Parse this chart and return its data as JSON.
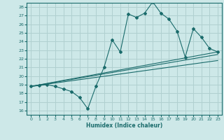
{
  "title": "",
  "xlabel": "Humidex (Indice chaleur)",
  "ylabel": "",
  "bg_color": "#cde8e8",
  "grid_color": "#b0d0d0",
  "line_color": "#1a6b6b",
  "xlim": [
    -0.5,
    23.5
  ],
  "ylim": [
    15.5,
    28.5
  ],
  "xticks": [
    0,
    1,
    2,
    3,
    4,
    5,
    6,
    7,
    8,
    9,
    10,
    11,
    12,
    13,
    14,
    15,
    16,
    17,
    18,
    19,
    20,
    21,
    22,
    23
  ],
  "yticks": [
    16,
    17,
    18,
    19,
    20,
    21,
    22,
    23,
    24,
    25,
    26,
    27,
    28
  ],
  "line1_x": [
    0,
    1,
    2,
    3,
    4,
    5,
    6,
    7,
    8,
    9,
    10,
    11,
    12,
    13,
    14,
    15,
    16,
    17,
    18,
    19,
    20,
    21,
    22,
    23
  ],
  "line1_y": [
    18.8,
    18.9,
    19.0,
    18.8,
    18.5,
    18.2,
    17.5,
    16.2,
    18.8,
    21.0,
    24.2,
    22.8,
    27.2,
    26.8,
    27.3,
    28.6,
    27.3,
    26.6,
    25.2,
    22.2,
    25.5,
    24.5,
    23.2,
    22.8
  ],
  "line2_x": [
    0,
    23
  ],
  "line2_y": [
    18.8,
    22.5
  ],
  "line3_x": [
    0,
    23
  ],
  "line3_y": [
    18.8,
    21.8
  ],
  "line4_x": [
    0,
    23
  ],
  "line4_y": [
    18.8,
    22.8
  ]
}
